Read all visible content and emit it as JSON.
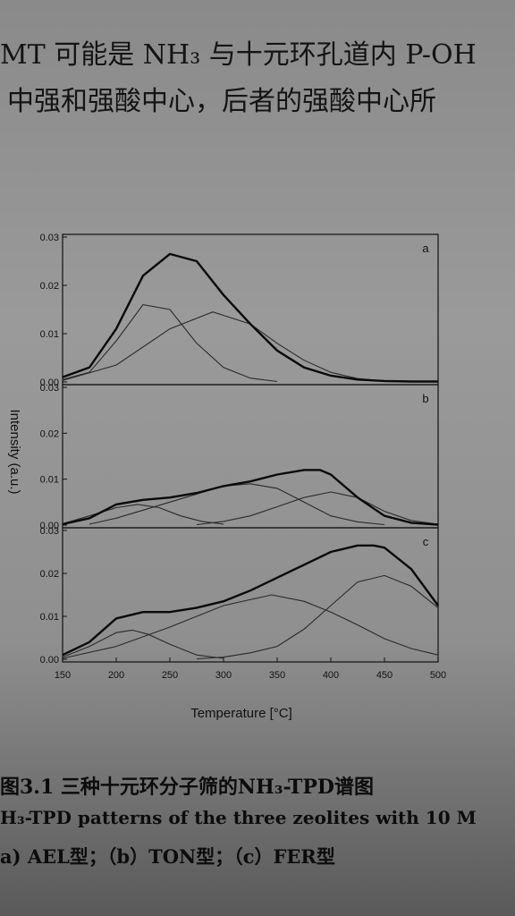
{
  "text": {
    "line1": "MT 可能是 NH₃ 与十元环孔道内 P-OH",
    "line2": "中强和强酸中心，后者的强酸中心所",
    "caption_cn": "图3.1 三种十元环分子筛的NH₃-TPD谱图",
    "caption_en": "H₃-TPD patterns of the three zeolites with 10 M",
    "caption_sub": "a) AEL型；（b）TON型；（c）FER型"
  },
  "chart_data": {
    "type": "line",
    "xlabel": "Temperature [°C]",
    "ylabel": "Intensity (a.u.)",
    "xlim": [
      150,
      500
    ],
    "x_ticks": [
      150,
      200,
      250,
      300,
      350,
      400,
      450,
      500
    ],
    "ylim": [
      0,
      0.03
    ],
    "y_ticks": [
      "0.00",
      "0.01",
      "0.02",
      "0.03"
    ],
    "panels": [
      {
        "label": "a",
        "total": {
          "x": [
            150,
            175,
            200,
            225,
            250,
            275,
            300,
            325,
            350,
            375,
            400,
            425,
            450,
            475,
            500
          ],
          "y": [
            0.001,
            0.003,
            0.011,
            0.022,
            0.0265,
            0.025,
            0.018,
            0.012,
            0.0065,
            0.003,
            0.0013,
            0.0005,
            0.0002,
            0.0001,
            0.0001
          ]
        },
        "peaks": [
          {
            "x": [
              150,
              175,
              200,
              225,
              250,
              275,
              300,
              325,
              350
            ],
            "y": [
              0.0005,
              0.002,
              0.0085,
              0.016,
              0.015,
              0.008,
              0.003,
              0.0008,
              0.0001
            ]
          },
          {
            "x": [
              150,
              200,
              250,
              290,
              325,
              350,
              375,
              400,
              425,
              450
            ],
            "y": [
              0.0003,
              0.0035,
              0.011,
              0.0145,
              0.012,
              0.008,
              0.0045,
              0.002,
              0.0007,
              0.0002
            ]
          }
        ]
      },
      {
        "label": "b",
        "total": {
          "x": [
            150,
            175,
            200,
            225,
            250,
            275,
            300,
            325,
            350,
            375,
            390,
            400,
            425,
            450,
            475,
            500
          ],
          "y": [
            0.0002,
            0.0015,
            0.0045,
            0.0055,
            0.006,
            0.007,
            0.0085,
            0.0095,
            0.011,
            0.012,
            0.012,
            0.011,
            0.006,
            0.002,
            0.0005,
            0.0001
          ]
        },
        "peaks": [
          {
            "x": [
              150,
              175,
              200,
              220,
              240,
              260,
              280,
              300
            ],
            "y": [
              0.0003,
              0.002,
              0.0038,
              0.0045,
              0.0038,
              0.002,
              0.0008,
              0.0002
            ]
          },
          {
            "x": [
              175,
              200,
              250,
              300,
              325,
              350,
              375,
              400,
              425,
              450
            ],
            "y": [
              0.0002,
              0.0015,
              0.005,
              0.0085,
              0.009,
              0.008,
              0.005,
              0.002,
              0.0007,
              0.0001
            ]
          },
          {
            "x": [
              275,
              300,
              325,
              350,
              375,
              400,
              425,
              450,
              475,
              500
            ],
            "y": [
              0.0001,
              0.0008,
              0.002,
              0.004,
              0.006,
              0.0072,
              0.006,
              0.003,
              0.001,
              0.0002
            ]
          }
        ]
      },
      {
        "label": "c",
        "total": {
          "x": [
            150,
            175,
            200,
            225,
            250,
            275,
            300,
            325,
            350,
            375,
            400,
            425,
            440,
            450,
            475,
            500
          ],
          "y": [
            0.001,
            0.004,
            0.0095,
            0.011,
            0.011,
            0.012,
            0.0135,
            0.016,
            0.019,
            0.022,
            0.025,
            0.0265,
            0.0265,
            0.026,
            0.021,
            0.0125
          ]
        },
        "peaks": [
          {
            "x": [
              150,
              175,
              200,
              215,
              230,
              250,
              275,
              300
            ],
            "y": [
              0.0005,
              0.003,
              0.0062,
              0.0068,
              0.0058,
              0.0035,
              0.001,
              0.0002
            ]
          },
          {
            "x": [
              150,
              200,
              250,
              300,
              345,
              375,
              400,
              425,
              450,
              475,
              500
            ],
            "y": [
              0.0002,
              0.003,
              0.0075,
              0.0125,
              0.015,
              0.0135,
              0.011,
              0.008,
              0.0048,
              0.0025,
              0.001
            ]
          },
          {
            "x": [
              275,
              300,
              325,
              350,
              375,
              400,
              425,
              450,
              475,
              500
            ],
            "y": [
              0.0001,
              0.0005,
              0.0015,
              0.003,
              0.007,
              0.0125,
              0.018,
              0.0195,
              0.017,
              0.012
            ]
          }
        ]
      }
    ]
  }
}
